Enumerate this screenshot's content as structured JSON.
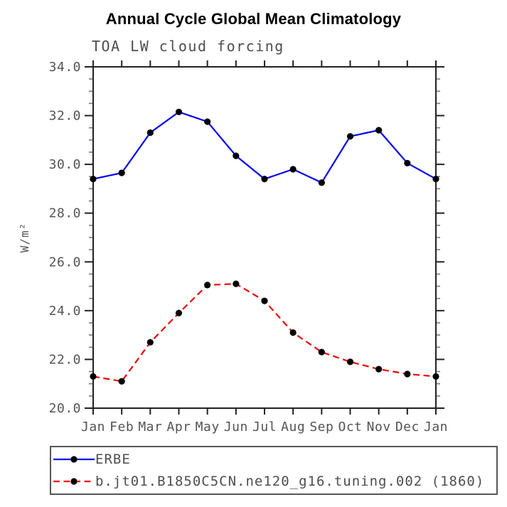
{
  "page": {
    "title": "Annual Cycle Global Mean Climatology",
    "subtitle": "TOA LW cloud forcing"
  },
  "chart_data": {
    "type": "line",
    "title": "Annual Cycle Global Mean Climatology",
    "subtitle": "TOA LW cloud forcing",
    "xlabel": "",
    "ylabel": "W/m²",
    "categories": [
      "Jan",
      "Feb",
      "Mar",
      "Apr",
      "May",
      "Jun",
      "Jul",
      "Aug",
      "Sep",
      "Oct",
      "Nov",
      "Dec",
      "Jan"
    ],
    "ylim": [
      20.0,
      34.0
    ],
    "y_major_step": 2.0,
    "y_minor_step": 0.5,
    "y_tick_labels": [
      "20.0",
      "22.0",
      "24.0",
      "26.0",
      "28.0",
      "30.0",
      "32.0",
      "34.0"
    ],
    "grid": false,
    "legend_position": "bottom-left",
    "axis_color": "#222222",
    "minor_tick_color": "#787878",
    "marker_color": "#000000",
    "series": [
      {
        "name": "ERBE",
        "color": "#0000ee",
        "line_style": "solid",
        "marker": "circle",
        "values": [
          29.4,
          29.65,
          31.3,
          32.15,
          31.75,
          30.35,
          29.4,
          29.8,
          29.25,
          31.15,
          31.4,
          30.05,
          29.4
        ]
      },
      {
        "name": "b.jt01.B1850C5CN.ne120_g16.tuning.002 (1860)",
        "color": "#ee0000",
        "line_style": "dashed",
        "marker": "circle",
        "values": [
          21.3,
          21.1,
          22.7,
          23.9,
          25.05,
          25.1,
          24.4,
          23.1,
          22.3,
          21.9,
          21.6,
          21.4,
          21.3
        ]
      }
    ]
  }
}
